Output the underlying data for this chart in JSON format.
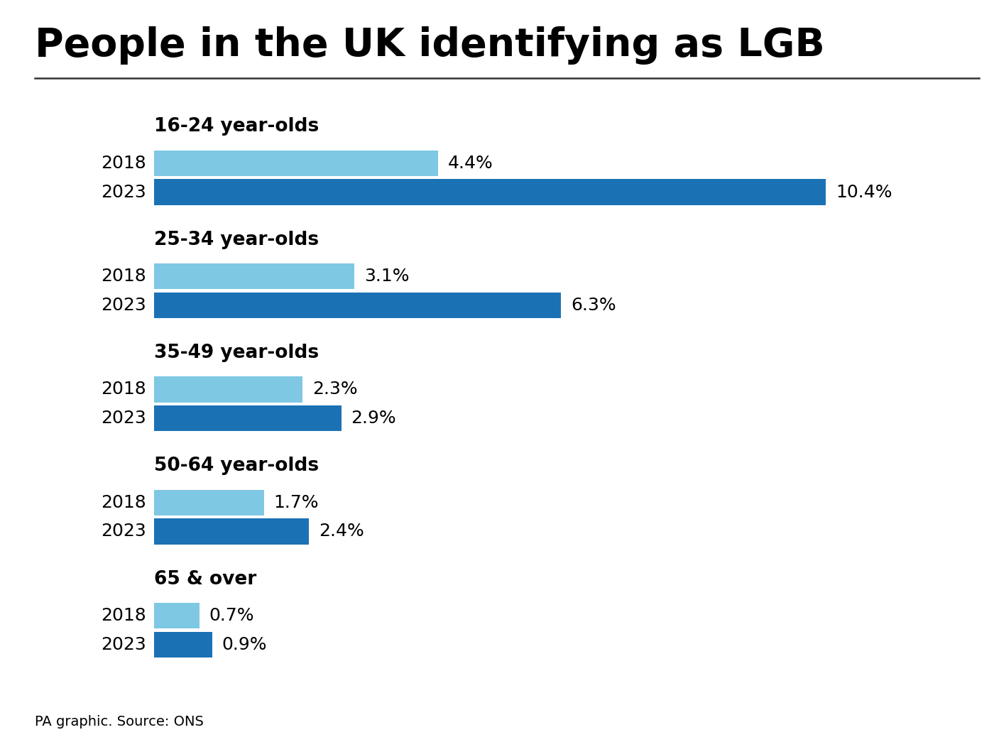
{
  "title": "People in the UK identifying as LGB",
  "footnote": "PA graphic. Source: ONS",
  "color_2018": "#7EC8E3",
  "color_2023": "#1A72B5",
  "background_color": "#FFFFFF",
  "groups": [
    {
      "label": "16-24 year-olds",
      "val_2018": 4.4,
      "val_2023": 10.4
    },
    {
      "label": "25-34 year-olds",
      "val_2018": 3.1,
      "val_2023": 6.3
    },
    {
      "label": "35-49 year-olds",
      "val_2018": 2.3,
      "val_2023": 2.9
    },
    {
      "label": "50-64 year-olds",
      "val_2018": 1.7,
      "val_2023": 2.4
    },
    {
      "label": "65 & over",
      "val_2018": 0.7,
      "val_2023": 0.9
    }
  ],
  "year_label_2018": "2018",
  "year_label_2023": "2023",
  "title_fontsize": 40,
  "group_label_fontsize": 19,
  "year_fontsize": 18,
  "value_fontsize": 18,
  "footnote_fontsize": 14,
  "xlim": [
    0,
    12
  ]
}
